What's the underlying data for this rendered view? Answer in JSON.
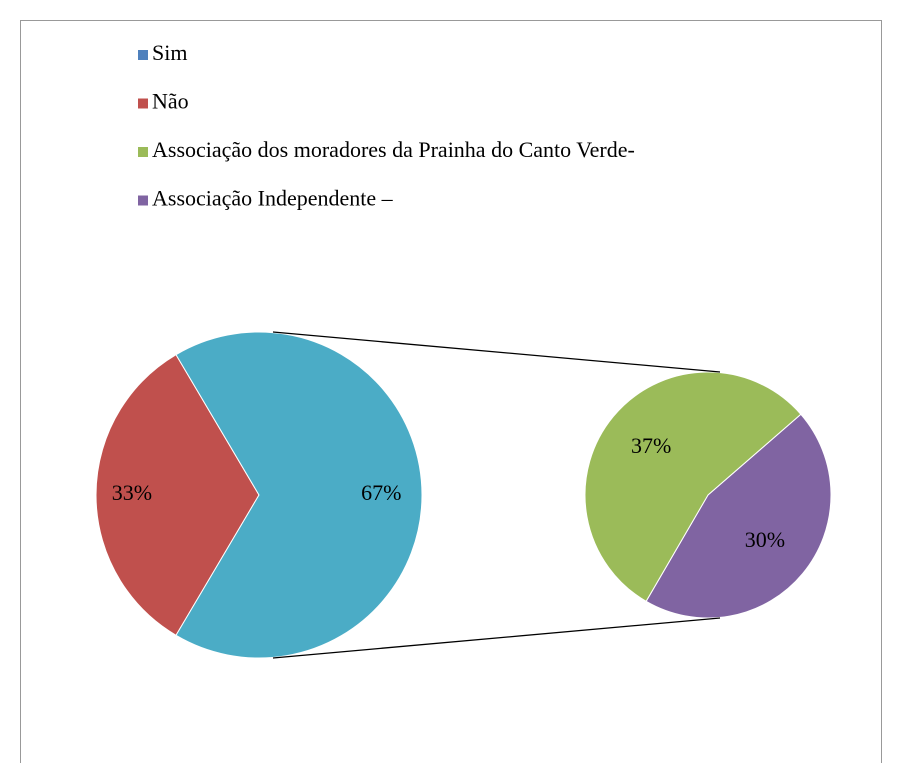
{
  "chart_data": {
    "type": "pie-of-pie",
    "categories": [
      "Sim",
      "Não",
      "Associação dos moradores da Prainha do Canto Verde-",
      "Associação Independente –"
    ],
    "colors": [
      "#4f81bd",
      "#c0504d",
      "#9bbb59",
      "#8064a2"
    ],
    "values": [
      null,
      33,
      37,
      30
    ],
    "value_labels": [
      null,
      "33%",
      "37%",
      "30%"
    ],
    "main_other": {
      "value": 67,
      "value_label": "67%",
      "color": "#4bacc6"
    }
  }
}
